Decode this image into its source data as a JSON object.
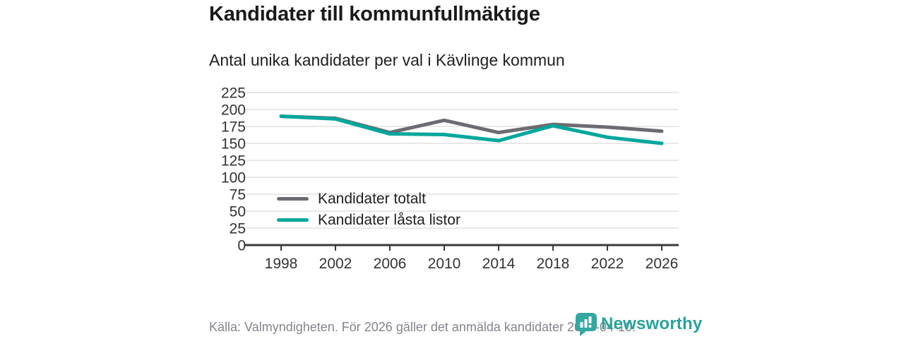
{
  "header": {
    "title": "Kandidater till kommunfullmäktige",
    "subtitle": "Antal unika kandidater per val i Kävlinge kommun"
  },
  "chart_data": {
    "type": "line",
    "title": "Kandidater till kommunfullmäktige",
    "subtitle": "Antal unika kandidater per val i Kävlinge kommun",
    "categories": [
      "1998",
      "2002",
      "2006",
      "2010",
      "2014",
      "2018",
      "2022",
      "2026"
    ],
    "series": [
      {
        "name": "Kandidater totalt",
        "color": "#6d6b71",
        "values": [
          190,
          187,
          166,
          184,
          166,
          178,
          174,
          168
        ]
      },
      {
        "name": "Kandidater låsta listor",
        "color": "#00a79b",
        "values": [
          190,
          186,
          164,
          163,
          154,
          176,
          159,
          150
        ]
      }
    ],
    "xlabel": "",
    "ylabel": "",
    "ylim": [
      0,
      225
    ],
    "ytick_step": 25,
    "yticks": [
      0,
      25,
      50,
      75,
      100,
      125,
      150,
      175,
      200,
      225
    ],
    "grid": true,
    "legend_position": "inside-left",
    "colors": {
      "gridline": "#e8e8e8",
      "axis": "#3a3a3a",
      "tick_text": "#333333"
    }
  },
  "footer": {
    "source": "Källa: Valmyndigheten. För 2026 gäller det anmälda kandidater 2026-04-10."
  },
  "branding": {
    "logo_text": "Newsworthy",
    "logo_icon": "newsworthy-chart-bubble-icon",
    "logo_color": "#2aa29a",
    "icon_fill": "#35a7a0"
  }
}
